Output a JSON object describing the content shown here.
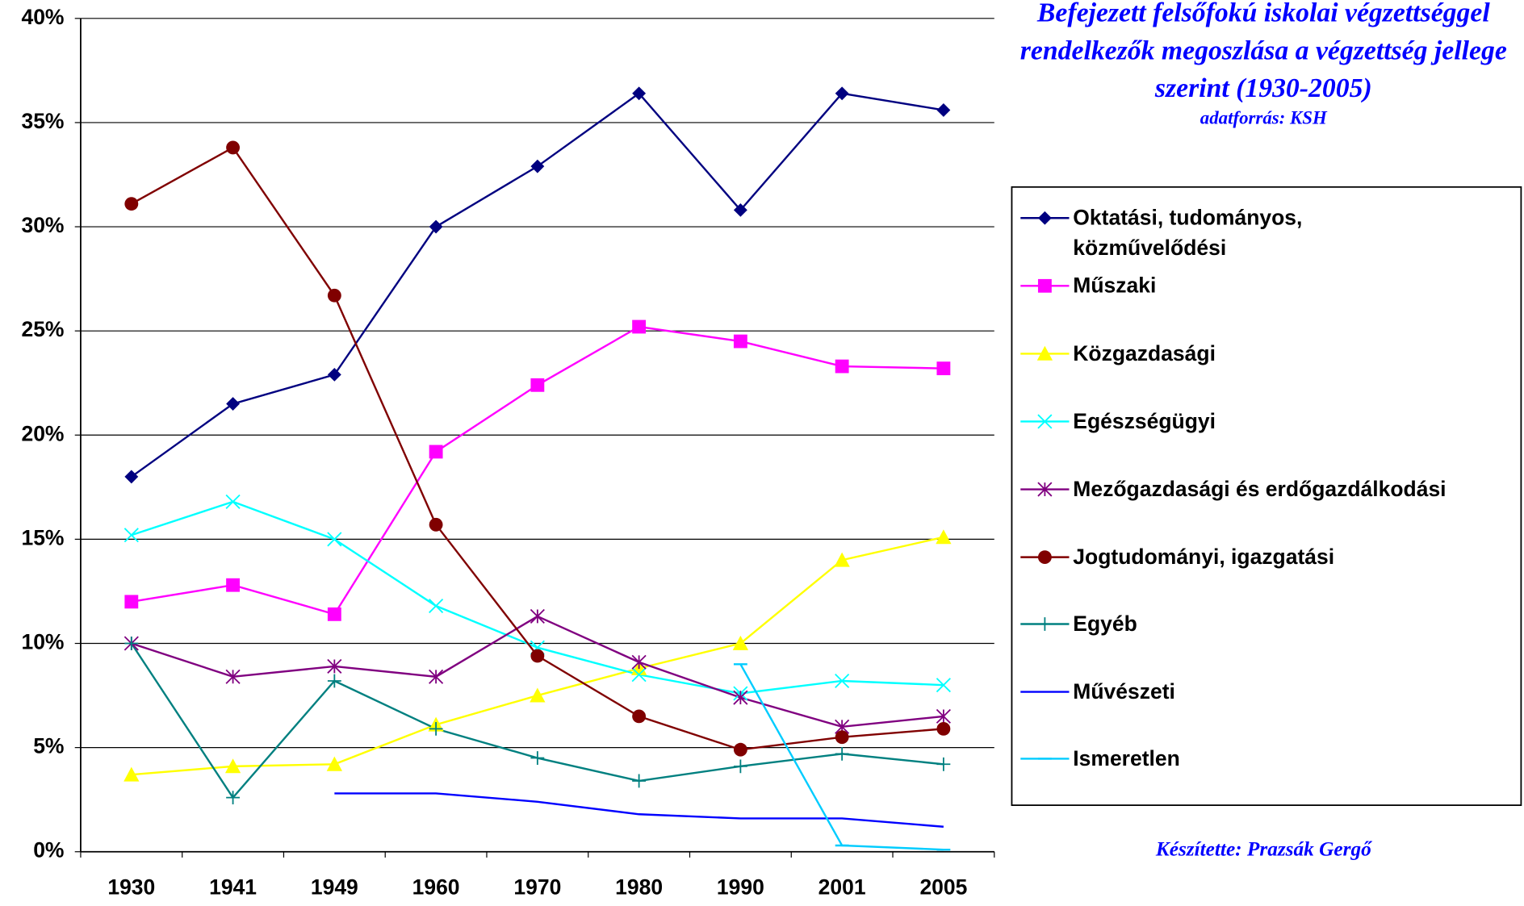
{
  "chart_data": {
    "type": "line",
    "title": "Befejezett felsőfokú iskolai végzettséggel rendelkezők megoszlása a végzettség jellege szerint (1930-2005)",
    "subtitle": "adatforrás: KSH",
    "annotation": "Készítette: Prazsák Gergő",
    "categories": [
      "1930",
      "1941",
      "1949",
      "1960",
      "1970",
      "1980",
      "1990",
      "2001",
      "2005"
    ],
    "ylim": [
      0,
      40
    ],
    "yticks": [
      {
        "value": 0,
        "label": "0%"
      },
      {
        "value": 5,
        "label": "5%"
      },
      {
        "value": 10,
        "label": "10%"
      },
      {
        "value": 15,
        "label": "15%"
      },
      {
        "value": 20,
        "label": "20%"
      },
      {
        "value": 25,
        "label": "25%"
      },
      {
        "value": 30,
        "label": "30%"
      },
      {
        "value": 35,
        "label": "35%"
      },
      {
        "value": 40,
        "label": "40%"
      }
    ],
    "grid": true,
    "legend": "right",
    "series": [
      {
        "name": "Oktatási, tudományos, közművelődési",
        "color": "#000080",
        "marker": "diamond",
        "values": [
          18.0,
          21.5,
          22.9,
          30.0,
          32.9,
          36.4,
          30.8,
          36.4,
          35.6
        ]
      },
      {
        "name": "Műszaki",
        "color": "#ff00ff",
        "marker": "square",
        "values": [
          12.0,
          12.8,
          11.4,
          19.2,
          22.4,
          25.2,
          24.5,
          23.3,
          23.2
        ]
      },
      {
        "name": "Közgazdasági",
        "color": "#ffff00",
        "marker": "triangle",
        "values": [
          3.7,
          4.1,
          4.2,
          6.1,
          7.5,
          8.8,
          10.0,
          14.0,
          15.1
        ]
      },
      {
        "name": "Egészségügyi",
        "color": "#00ffff",
        "marker": "x",
        "values": [
          15.2,
          16.8,
          15.0,
          11.8,
          9.8,
          8.5,
          7.6,
          8.2,
          8.0
        ]
      },
      {
        "name": "Mezőgazdasági és erdőgazdálkodási",
        "color": "#800080",
        "marker": "star",
        "values": [
          10.0,
          8.4,
          8.9,
          8.4,
          11.3,
          9.1,
          7.4,
          6.0,
          6.5
        ]
      },
      {
        "name": "Jogtudományi, igazgatási",
        "color": "#800000",
        "marker": "circle",
        "values": [
          31.1,
          33.8,
          26.7,
          15.7,
          9.4,
          6.5,
          4.9,
          5.5,
          5.9
        ]
      },
      {
        "name": "Egyéb",
        "color": "#008080",
        "marker": "plus",
        "values": [
          10.0,
          2.6,
          8.2,
          5.9,
          4.5,
          3.4,
          4.1,
          4.7,
          4.2
        ]
      },
      {
        "name": "Művészeti",
        "color": "#0000ff",
        "marker": "none",
        "values": [
          null,
          null,
          2.8,
          2.8,
          2.4,
          1.8,
          1.6,
          1.6,
          1.2
        ]
      },
      {
        "name": "Ismeretlen",
        "color": "#00ccff",
        "marker": "dash",
        "values": [
          null,
          null,
          null,
          null,
          null,
          null,
          9.0,
          0.3,
          0.1
        ]
      }
    ]
  }
}
